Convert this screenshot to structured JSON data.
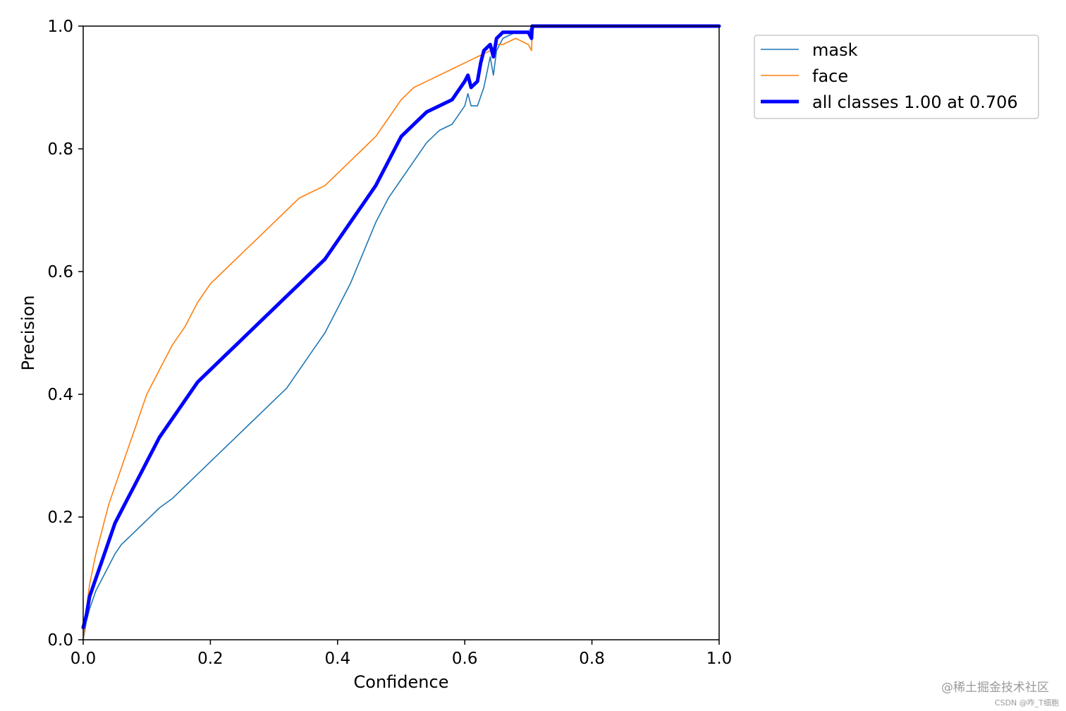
{
  "chart_data": {
    "type": "line",
    "title": "",
    "xlabel": "Confidence",
    "ylabel": "Precision",
    "xlim": [
      0,
      1
    ],
    "ylim": [
      0,
      1
    ],
    "grid": false,
    "legend_position": "outside-top-right",
    "x_ticks": [
      "0.0",
      "0.2",
      "0.4",
      "0.6",
      "0.8",
      "1.0"
    ],
    "y_ticks": [
      "0.0",
      "0.2",
      "0.4",
      "0.6",
      "0.8",
      "1.0"
    ],
    "series": [
      {
        "name": "mask",
        "color": "#1f77b4",
        "style": "thin",
        "x": [
          0.0,
          0.005,
          0.01,
          0.02,
          0.03,
          0.04,
          0.05,
          0.06,
          0.07,
          0.08,
          0.09,
          0.1,
          0.12,
          0.14,
          0.16,
          0.18,
          0.2,
          0.22,
          0.24,
          0.26,
          0.28,
          0.3,
          0.32,
          0.34,
          0.36,
          0.38,
          0.4,
          0.42,
          0.44,
          0.46,
          0.48,
          0.5,
          0.52,
          0.54,
          0.56,
          0.58,
          0.6,
          0.605,
          0.61,
          0.62,
          0.63,
          0.64,
          0.645,
          0.65,
          0.66,
          0.68,
          0.7,
          0.706,
          0.71,
          0.75,
          0.8,
          1.0
        ],
        "y": [
          0.0,
          0.03,
          0.05,
          0.08,
          0.1,
          0.12,
          0.14,
          0.155,
          0.165,
          0.175,
          0.185,
          0.195,
          0.215,
          0.23,
          0.25,
          0.27,
          0.29,
          0.31,
          0.33,
          0.35,
          0.37,
          0.39,
          0.41,
          0.44,
          0.47,
          0.5,
          0.54,
          0.58,
          0.63,
          0.68,
          0.72,
          0.75,
          0.78,
          0.81,
          0.83,
          0.84,
          0.87,
          0.89,
          0.87,
          0.87,
          0.9,
          0.95,
          0.92,
          0.96,
          0.98,
          0.99,
          0.99,
          1.0,
          1.0,
          1.0,
          1.0,
          1.0
        ]
      },
      {
        "name": "face",
        "color": "#ff7f0e",
        "style": "thin",
        "x": [
          0.0,
          0.005,
          0.01,
          0.02,
          0.03,
          0.04,
          0.05,
          0.06,
          0.07,
          0.08,
          0.09,
          0.1,
          0.12,
          0.14,
          0.16,
          0.18,
          0.2,
          0.22,
          0.24,
          0.26,
          0.28,
          0.3,
          0.32,
          0.34,
          0.36,
          0.38,
          0.4,
          0.42,
          0.44,
          0.46,
          0.48,
          0.5,
          0.52,
          0.54,
          0.56,
          0.58,
          0.6,
          0.62,
          0.64,
          0.65,
          0.66,
          0.68,
          0.7,
          0.705,
          0.706,
          0.71,
          0.75,
          0.8,
          1.0
        ],
        "y": [
          0.0,
          0.05,
          0.09,
          0.14,
          0.18,
          0.22,
          0.25,
          0.28,
          0.31,
          0.34,
          0.37,
          0.4,
          0.44,
          0.48,
          0.51,
          0.55,
          0.58,
          0.6,
          0.62,
          0.64,
          0.66,
          0.68,
          0.7,
          0.72,
          0.73,
          0.74,
          0.76,
          0.78,
          0.8,
          0.82,
          0.85,
          0.88,
          0.9,
          0.91,
          0.92,
          0.93,
          0.94,
          0.95,
          0.96,
          0.97,
          0.97,
          0.98,
          0.97,
          0.96,
          0.99,
          1.0,
          1.0,
          1.0,
          1.0
        ]
      },
      {
        "name": "all classes 1.00 at 0.706",
        "color": "#0000ff",
        "style": "thick",
        "x": [
          0.0,
          0.005,
          0.01,
          0.02,
          0.03,
          0.04,
          0.05,
          0.06,
          0.07,
          0.08,
          0.09,
          0.1,
          0.12,
          0.14,
          0.16,
          0.18,
          0.2,
          0.22,
          0.24,
          0.26,
          0.28,
          0.3,
          0.32,
          0.34,
          0.36,
          0.38,
          0.4,
          0.42,
          0.44,
          0.46,
          0.48,
          0.5,
          0.52,
          0.54,
          0.56,
          0.58,
          0.6,
          0.605,
          0.61,
          0.62,
          0.625,
          0.63,
          0.64,
          0.645,
          0.65,
          0.66,
          0.68,
          0.7,
          0.705,
          0.706,
          0.71,
          0.75,
          0.8,
          1.0
        ],
        "y": [
          0.02,
          0.04,
          0.07,
          0.1,
          0.13,
          0.16,
          0.19,
          0.21,
          0.23,
          0.25,
          0.27,
          0.29,
          0.33,
          0.36,
          0.39,
          0.42,
          0.44,
          0.46,
          0.48,
          0.5,
          0.52,
          0.54,
          0.56,
          0.58,
          0.6,
          0.62,
          0.65,
          0.68,
          0.71,
          0.74,
          0.78,
          0.82,
          0.84,
          0.86,
          0.87,
          0.88,
          0.91,
          0.92,
          0.9,
          0.91,
          0.94,
          0.96,
          0.97,
          0.95,
          0.98,
          0.99,
          0.99,
          0.99,
          0.98,
          1.0,
          1.0,
          1.0,
          1.0,
          1.0
        ]
      }
    ]
  },
  "watermark": {
    "main": "@稀土掘金技术社区",
    "sub": "CSDN @咋_T细胞"
  }
}
